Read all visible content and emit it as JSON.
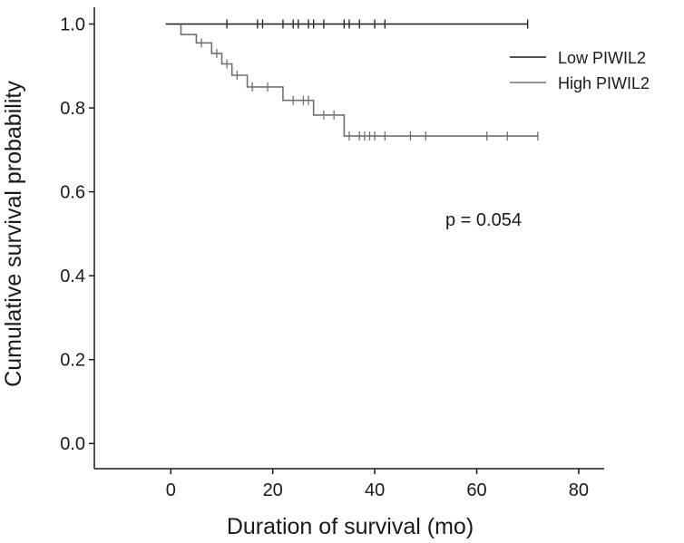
{
  "chart_data": {
    "type": "line",
    "title": "",
    "xlabel": "Duration of survival (mo)",
    "ylabel": "Cumulative survival probability",
    "xlim": [
      -15,
      85
    ],
    "ylim": [
      -0.06,
      1.04
    ],
    "xticks": [
      0,
      20,
      40,
      60,
      80
    ],
    "xtick_labels": [
      "0",
      "20",
      "40",
      "60",
      "80"
    ],
    "yticks": [
      0.0,
      0.2,
      0.4,
      0.6,
      0.8,
      1.0
    ],
    "ytick_labels": [
      "0.0",
      "0.2",
      "0.4",
      "0.6",
      "0.8",
      "1.0"
    ],
    "grid": false,
    "legend_position": "top-right",
    "annotation": "p = 0.054",
    "series": [
      {
        "name": "Low PIWIL2",
        "color": "#1a1a1a",
        "steps": [
          [
            -1,
            1.0
          ],
          [
            70,
            1.0
          ]
        ],
        "censored": [
          [
            11,
            1.0
          ],
          [
            17,
            1.0
          ],
          [
            18,
            1.0
          ],
          [
            22,
            1.0
          ],
          [
            24,
            1.0
          ],
          [
            25,
            1.0
          ],
          [
            27,
            1.0
          ],
          [
            28,
            1.0
          ],
          [
            30,
            1.0
          ],
          [
            34,
            1.0
          ],
          [
            35,
            1.0
          ],
          [
            37,
            1.0
          ],
          [
            40,
            1.0
          ],
          [
            42,
            1.0
          ],
          [
            70,
            1.0
          ]
        ]
      },
      {
        "name": "High PIWIL2",
        "color": "#707070",
        "steps": [
          [
            2,
            1.0
          ],
          [
            2,
            0.975
          ],
          [
            5,
            0.975
          ],
          [
            5,
            0.955
          ],
          [
            8,
            0.955
          ],
          [
            8,
            0.93
          ],
          [
            10,
            0.93
          ],
          [
            10,
            0.905
          ],
          [
            12,
            0.905
          ],
          [
            12,
            0.878
          ],
          [
            15,
            0.878
          ],
          [
            15,
            0.85
          ],
          [
            22,
            0.85
          ],
          [
            22,
            0.818
          ],
          [
            28,
            0.818
          ],
          [
            28,
            0.783
          ],
          [
            34,
            0.783
          ],
          [
            34,
            0.733
          ],
          [
            72,
            0.733
          ]
        ],
        "censored": [
          [
            6,
            0.955
          ],
          [
            9,
            0.93
          ],
          [
            11,
            0.905
          ],
          [
            13,
            0.878
          ],
          [
            16,
            0.85
          ],
          [
            19,
            0.85
          ],
          [
            24,
            0.818
          ],
          [
            26,
            0.818
          ],
          [
            27,
            0.818
          ],
          [
            30,
            0.783
          ],
          [
            32,
            0.783
          ],
          [
            35,
            0.733
          ],
          [
            37,
            0.733
          ],
          [
            38,
            0.733
          ],
          [
            39,
            0.733
          ],
          [
            40,
            0.733
          ],
          [
            42,
            0.733
          ],
          [
            47,
            0.733
          ],
          [
            50,
            0.733
          ],
          [
            62,
            0.733
          ],
          [
            66,
            0.733
          ],
          [
            72,
            0.733
          ]
        ]
      }
    ]
  }
}
